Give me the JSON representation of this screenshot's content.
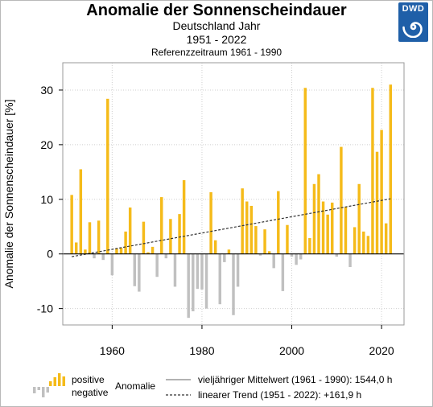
{
  "header": {
    "title": "Anomalie der Sonnenscheindauer",
    "subtitle": "Deutschland Jahr",
    "period": "1951 - 2022",
    "reference": "Referenzzeitraum 1961 - 1990",
    "logo_text": "DWD"
  },
  "colors": {
    "positive": "#f5bb1a",
    "negative": "#c0c0c0",
    "trend": "#333333",
    "logo": "#1f5fa8"
  },
  "legend": {
    "positive_label": "positive",
    "negative_label": "negative",
    "anomaly_label": "Anomalie",
    "mean_label": "vieljähriger Mittelwert (1961 - 1990): 1544,0 h",
    "trend_label": "linearer Trend (1951 - 2022): +161,9 h"
  },
  "chart_data": {
    "type": "bar",
    "ylabel": "Anomalie der Sonnenscheindauer [%]",
    "ylim": [
      -13,
      35
    ],
    "xlim": [
      1949,
      2025
    ],
    "yticks": [
      -10,
      0,
      10,
      20,
      30
    ],
    "xticks": [
      1960,
      1980,
      2000,
      2020
    ],
    "grid": true,
    "x": [
      1951,
      1952,
      1953,
      1954,
      1955,
      1956,
      1957,
      1958,
      1959,
      1960,
      1961,
      1962,
      1963,
      1964,
      1965,
      1966,
      1967,
      1968,
      1969,
      1970,
      1971,
      1972,
      1973,
      1974,
      1975,
      1976,
      1977,
      1978,
      1979,
      1980,
      1981,
      1982,
      1983,
      1984,
      1985,
      1986,
      1987,
      1988,
      1989,
      1990,
      1991,
      1992,
      1993,
      1994,
      1995,
      1996,
      1997,
      1998,
      1999,
      2000,
      2001,
      2002,
      2003,
      2004,
      2005,
      2006,
      2007,
      2008,
      2009,
      2010,
      2011,
      2012,
      2013,
      2014,
      2015,
      2016,
      2017,
      2018,
      2019,
      2020,
      2021,
      2022
    ],
    "values": [
      10.8,
      2.1,
      15.5,
      0.8,
      5.8,
      -0.8,
      6.1,
      -1.1,
      28.4,
      -3.9,
      1.0,
      1.1,
      4.1,
      8.5,
      -5.9,
      -6.9,
      5.9,
      0.3,
      1.3,
      -4.2,
      10.4,
      -0.8,
      6.4,
      -6.0,
      7.3,
      13.5,
      -11.7,
      -10.5,
      -6.4,
      -6.5,
      -10.0,
      11.3,
      2.5,
      -9.2,
      -1.5,
      0.8,
      -11.2,
      -6.0,
      12.0,
      9.6,
      8.8,
      5.1,
      -0.3,
      4.5,
      0.5,
      -2.6,
      11.5,
      -6.8,
      5.3,
      -0.5,
      -2.0,
      -1.0,
      30.4,
      2.9,
      12.8,
      14.6,
      9.6,
      7.2,
      9.4,
      -0.5,
      19.6,
      8.6,
      -2.4,
      4.9,
      12.8,
      4.1,
      3.3,
      30.4,
      18.7,
      22.7,
      5.6,
      31.0
    ],
    "trend": {
      "x": [
        1951,
        2022
      ],
      "y": [
        -0.5,
        10.1
      ]
    }
  }
}
